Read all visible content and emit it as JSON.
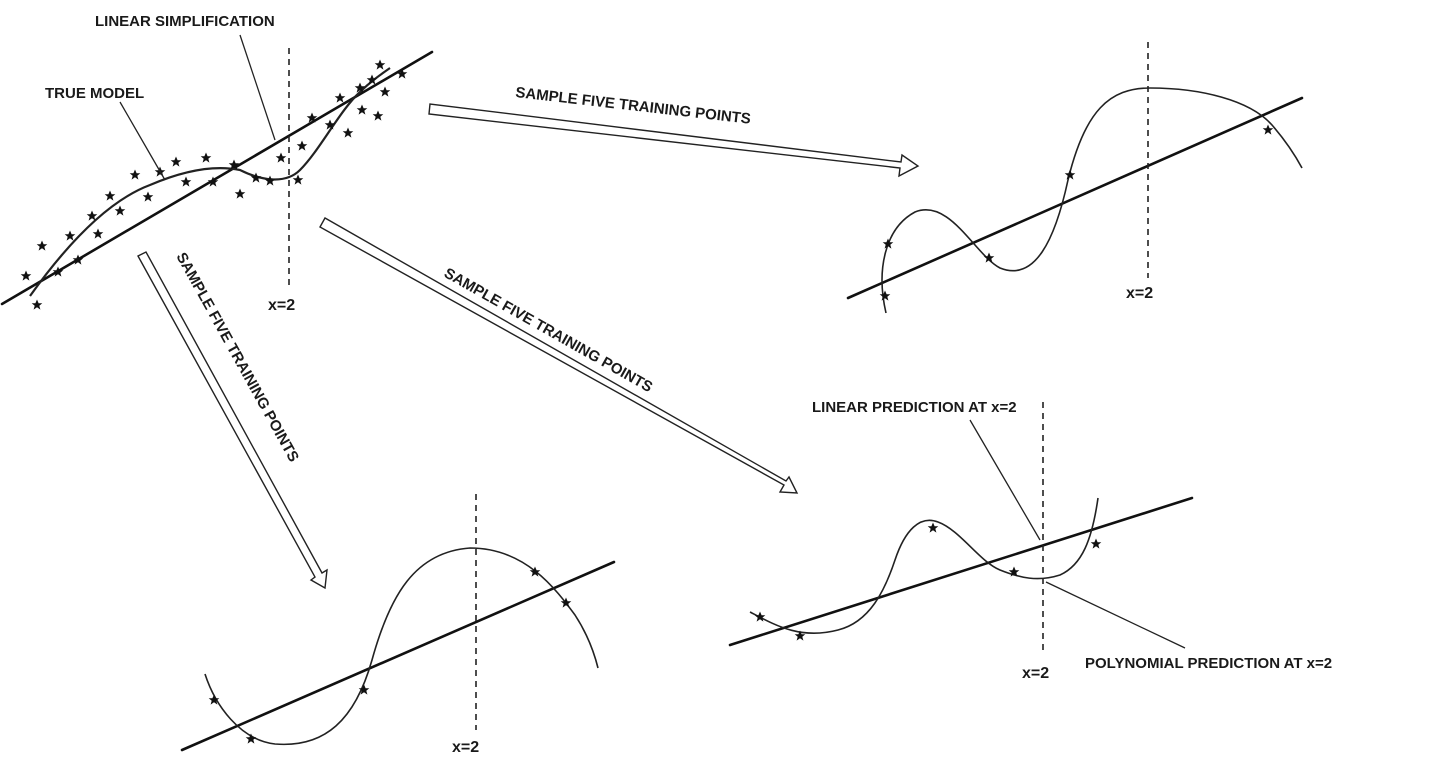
{
  "labels": {
    "linear_simplification": "LINEAR SIMPLIFICATION",
    "true_model": "TRUE MODEL",
    "sample_arrow_right": "SAMPLE FIVE TRAINING POINTS",
    "sample_arrow_diag": "SAMPLE FIVE TRAINING POINTS",
    "sample_arrow_down": "SAMPLE FIVE TRAINING POINTS",
    "linear_prediction": "LINEAR PREDICTION AT x=2",
    "polynomial_prediction": "POLYNOMIAL PREDICTION AT x=2"
  },
  "panels": {
    "true_model_panel": {
      "x_marker": "x=2"
    },
    "sample_top_right": {
      "x_marker": "x=2"
    },
    "sample_bottom_middle": {
      "x_marker": "x=2"
    },
    "sample_bottom_right": {
      "x_marker": "x=2"
    }
  }
}
